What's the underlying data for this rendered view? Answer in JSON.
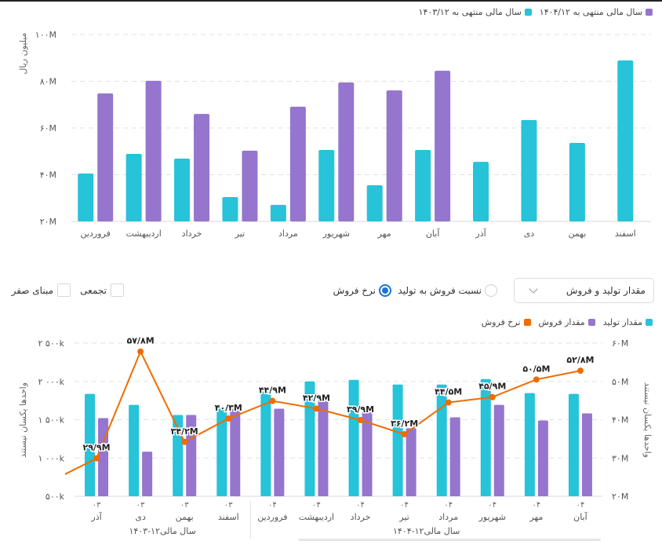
{
  "colors": {
    "cyan": "#26c3d9",
    "purple": "#9575cd",
    "orange": "#ef6c00",
    "grid": "#e2e2e2",
    "radio_selected": "#1976d2"
  },
  "controls": {
    "dropdown_value": "مقدار تولید و فروش",
    "radio_ratio_label": "نسبت فروش به تولید",
    "radio_ratio_selected": false,
    "radio_price_label": "نرخ فروش",
    "radio_price_selected": true,
    "check_cumulative_label": "تجمعی",
    "check_cumulative_checked": false,
    "check_zero_base_label": "مبنای صفر",
    "check_zero_base_checked": false
  },
  "chart_data": [
    {
      "type": "bar",
      "title": "",
      "xlabel": "",
      "ylabel": "میلیون ریال",
      "ylim": [
        20,
        100
      ],
      "yticks": [
        20,
        40,
        60,
        80,
        100
      ],
      "ytick_labels": [
        "۲۰M",
        "۴۰M",
        "۶۰M",
        "۸۰M",
        "۱۰۰M"
      ],
      "grid": true,
      "legend_position": "top-right",
      "categories": [
        "فروردین",
        "اردیبهشت",
        "خرداد",
        "تیر",
        "مرداد",
        "شهریور",
        "مهر",
        "آبان",
        "آذر",
        "دی",
        "بهمن",
        "اسفند"
      ],
      "series": [
        {
          "name": "سال مالی منتهی به ۱۴۰۳/۱۲",
          "color_key": "cyan",
          "values": [
            40.5,
            48.9,
            46.9,
            30.4,
            27.1,
            50.6,
            35.5,
            50.6,
            45.5,
            63.4,
            53.6,
            88.9
          ]
        },
        {
          "name": "سال مالی منتهی به ۱۴۰۴/۱۲",
          "color_key": "purple",
          "values": [
            74.8,
            80.2,
            66.0,
            50.3,
            69.1,
            79.5,
            76.1,
            84.5,
            null,
            null,
            null,
            null
          ]
        }
      ]
    },
    {
      "type": "bar+line",
      "title": "",
      "xlabel": "",
      "ylabel_left": "واحدها یکسان نیستند",
      "ylabel_right": "واحدها یکسان نیستند",
      "ylim_left": [
        500,
        2500
      ],
      "yticks_left": [
        500,
        1000,
        1500,
        2000,
        2500
      ],
      "ytick_labels_left": [
        "۵۰۰k",
        "۱ ۰۰۰k",
        "۱ ۵۰۰k",
        "۲ ۰۰۰k",
        "۲ ۵۰۰k"
      ],
      "ylim_right": [
        20,
        60
      ],
      "yticks_right": [
        20,
        30,
        40,
        50,
        60
      ],
      "ytick_labels_right": [
        "۲۰M",
        "۳۰M",
        "۴۰M",
        "۵۰M",
        "۶۰M"
      ],
      "grid": true,
      "legend_position": "top-right",
      "categories": [
        "آذر",
        "دی",
        "بهمن",
        "اسفند",
        "فروردین",
        "اردیبهشت",
        "خرداد",
        "تیر",
        "مرداد",
        "شهریور",
        "مهر",
        "آبان"
      ],
      "category_years": [
        "۰۳",
        "۰۳",
        "۰۳",
        "۰۳",
        "۰۴",
        "۰۴",
        "۰۴",
        "۰۴",
        "۰۴",
        "۰۴",
        "۰۴",
        "۰۴"
      ],
      "groups": [
        {
          "label": "سال مالی۱۲-۱۴۰۳",
          "count": 4
        },
        {
          "label": "سال مالی۱۲-۱۴۰۴",
          "count": 8
        }
      ],
      "series": [
        {
          "name": "مقدار تولید",
          "type": "bar",
          "axis": "left",
          "color_key": "cyan",
          "values": [
            1837,
            1694,
            1561,
            1653,
            1867,
            2000,
            2020,
            1959,
            1959,
            2031,
            1847,
            1837
          ]
        },
        {
          "name": "مقدار فروش",
          "type": "bar",
          "axis": "left",
          "color_key": "purple",
          "values": [
            1520,
            1082,
            1561,
            1643,
            1643,
            1755,
            1602,
            1388,
            1531,
            1694,
            1490,
            1582
          ]
        },
        {
          "name": "نرخ فروش",
          "type": "line",
          "axis": "right",
          "color_key": "orange",
          "values": [
            29.9,
            57.8,
            34.2,
            40.3,
            44.9,
            42.9,
            39.9,
            36.2,
            44.5,
            45.9,
            50.5,
            52.8
          ],
          "labels": [
            "۲۹/۹M",
            "۵۷/۸M",
            "۳۴/۲M",
            "۴۰/۳M",
            "۴۴/۹M",
            "۴۲/۹M",
            "۳۹/۹M",
            "۳۶/۲M",
            "۴۴/۵M",
            "۴۵/۹M",
            "۵۰/۵M",
            "۵۲/۸M"
          ],
          "previous_value": 24.1
        }
      ]
    }
  ]
}
